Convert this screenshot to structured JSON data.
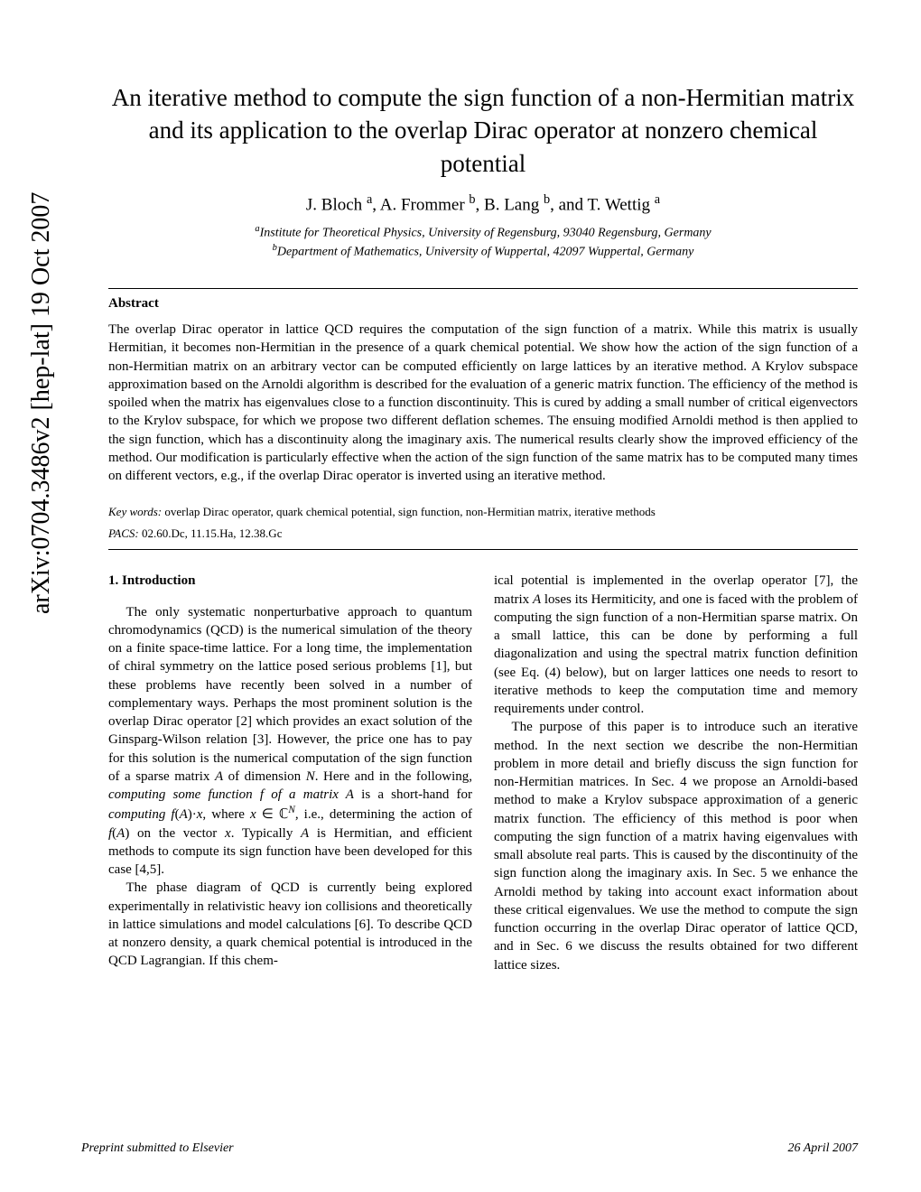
{
  "arxiv": "arXiv:0704.3486v2  [hep-lat]  19 Oct 2007",
  "title": "An iterative method to compute the sign function of a non-Hermitian matrix and its application to the overlap Dirac operator at nonzero chemical potential",
  "authors_html": "J. Bloch <sup>a</sup>, A. Frommer <sup>b</sup>, B. Lang <sup>b</sup>, and T. Wettig <sup>a</sup>",
  "affiliation_a_html": "<sup>a</sup>Institute for Theoretical Physics, University of Regensburg, 93040 Regensburg, Germany",
  "affiliation_b_html": "<sup>b</sup>Department of Mathematics, University of Wuppertal, 42097 Wuppertal, Germany",
  "abstract_heading": "Abstract",
  "abstract": "The overlap Dirac operator in lattice QCD requires the computation of the sign function of a matrix. While this matrix is usually Hermitian, it becomes non-Hermitian in the presence of a quark chemical potential. We show how the action of the sign function of a non-Hermitian matrix on an arbitrary vector can be computed efficiently on large lattices by an iterative method. A Krylov subspace approximation based on the Arnoldi algorithm is described for the evaluation of a generic matrix function. The efficiency of the method is spoiled when the matrix has eigenvalues close to a function discontinuity. This is cured by adding a small number of critical eigenvectors to the Krylov subspace, for which we propose two different deflation schemes. The ensuing modified Arnoldi method is then applied to the sign function, which has a discontinuity along the imaginary axis. The numerical results clearly show the improved efficiency of the method. Our modification is particularly effective when the action of the sign function of the same matrix has to be computed many times on different vectors, e.g., if the overlap Dirac operator is inverted using an iterative method.",
  "keywords_label": "Key words:",
  "keywords": "overlap Dirac operator, quark chemical potential, sign function, non-Hermitian matrix, iterative methods",
  "pacs_label": "PACS:",
  "pacs": "02.60.Dc, 11.15.Ha, 12.38.Gc",
  "section1_heading": "1.  Introduction",
  "col1_p1_html": "The only systematic nonperturbative approach to quantum chromodynamics (QCD) is the numerical simulation of the theory on a finite space-time lattice. For a long time, the implementation of chiral symmetry on the lattice posed serious problems [1], but these problems have recently been solved in a number of complementary ways. Perhaps the most prominent solution is the overlap Dirac operator [2] which provides an exact solution of the Ginsparg-Wilson relation [3]. However, the price one has to pay for this solution is the numerical computation of the sign function of a sparse matrix <i>A</i> of dimension <i>N</i>. Here and in the following, <i>computing some function f of a matrix A</i> is a short-hand for <i>computing f</i>(<i>A</i>)·<i>x</i>, where <i>x</i> ∈ ℂ<sup><i>N</i></sup>, i.e., determining the action of <i>f</i>(<i>A</i>) on the vector <i>x</i>. Typically <i>A</i> is Hermitian, and efficient methods to compute its sign function have been developed for this case [4,5].",
  "col1_p2": "The phase diagram of QCD is currently being explored experimentally in relativistic heavy ion collisions and theoretically in lattice simulations and model calculations [6]. To describe QCD at nonzero density, a quark chemical potential is introduced in the QCD Lagrangian. If this chem-",
  "col2_p1_html": "ical potential is implemented in the overlap operator [7], the matrix <i>A</i> loses its Hermiticity, and one is faced with the problem of computing the sign function of a non-Hermitian sparse matrix. On a small lattice, this can be done by performing a full diagonalization and using the spectral matrix function definition (see Eq. (4) below), but on larger lattices one needs to resort to iterative methods to keep the computation time and memory requirements under control.",
  "col2_p2": "The purpose of this paper is to introduce such an iterative method. In the next section we describe the non-Hermitian problem in more detail and briefly discuss the sign function for non-Hermitian matrices. In Sec. 4 we propose an Arnoldi-based method to make a Krylov subspace approximation of a generic matrix function. The efficiency of this method is poor when computing the sign function of a matrix having eigenvalues with small absolute real parts. This is caused by the discontinuity of the sign function along the imaginary axis. In Sec. 5 we enhance the Arnoldi method by taking into account exact information about these critical eigenvalues. We use the method to compute the sign function occurring in the overlap Dirac operator of lattice QCD, and in Sec. 6 we discuss the results obtained for two different lattice sizes.",
  "footer_left": "Preprint submitted to Elsevier",
  "footer_right": "26 April 2007"
}
